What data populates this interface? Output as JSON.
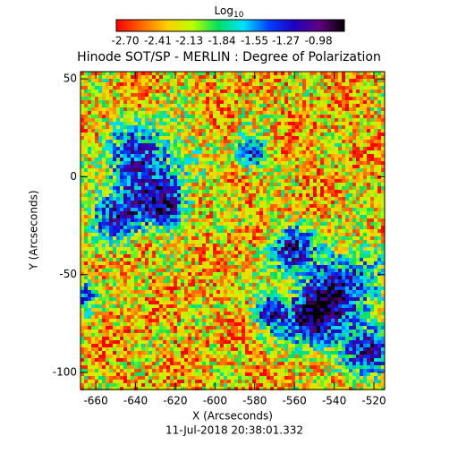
{
  "chart_data": {
    "type": "heatmap",
    "title": "Hinode SOT/SP - MERLIN : Degree of Polarization",
    "xlabel": "X (Arcseconds)",
    "ylabel": "Y (Arcseconds)",
    "footer": "11-Jul-2018 20:38:01.332",
    "colorbar_label": "Log",
    "colorbar_label_sub": "10",
    "colormap": [
      "#ff0000",
      "#ff6a00",
      "#ffd000",
      "#b8ff00",
      "#00e060",
      "#00e0ff",
      "#0040ff",
      "#2000c0",
      "#600080",
      "#000000"
    ],
    "clim": [
      -2.78,
      -0.75
    ],
    "cticks": [
      {
        "value": -2.7,
        "label": "-2.70"
      },
      {
        "value": -2.41,
        "label": "-2.41"
      },
      {
        "value": -2.13,
        "label": "-2.13"
      },
      {
        "value": -1.84,
        "label": "-1.84"
      },
      {
        "value": -1.55,
        "label": "-1.55"
      },
      {
        "value": -1.27,
        "label": "-1.27"
      },
      {
        "value": -0.98,
        "label": "-0.98"
      }
    ],
    "xlim": [
      -667.7,
      -514.6
    ],
    "xticks": [
      -660,
      -640,
      -620,
      -600,
      -580,
      -560,
      -540,
      -520
    ],
    "ylim": [
      -108.7,
      53.7
    ],
    "yticks": [
      -100,
      -50,
      0,
      50
    ]
  }
}
